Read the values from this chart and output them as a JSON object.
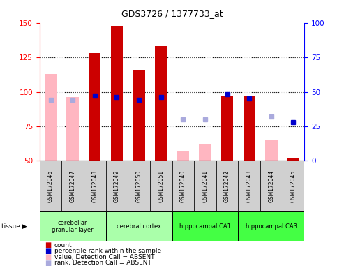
{
  "title": "GDS3726 / 1377733_at",
  "samples": [
    "GSM172046",
    "GSM172047",
    "GSM172048",
    "GSM172049",
    "GSM172050",
    "GSM172051",
    "GSM172040",
    "GSM172041",
    "GSM172042",
    "GSM172043",
    "GSM172044",
    "GSM172045"
  ],
  "group_data": [
    {
      "start": 0,
      "end": 2,
      "label": "cerebellar\ngranular layer",
      "color": "#AAFFAA"
    },
    {
      "start": 3,
      "end": 5,
      "label": "cerebral cortex",
      "color": "#AAFFAA"
    },
    {
      "start": 6,
      "end": 8,
      "label": "hippocampal CA1",
      "color": "#44FF44"
    },
    {
      "start": 9,
      "end": 11,
      "label": "hippocampal CA3",
      "color": "#44FF44"
    }
  ],
  "count_present": [
    null,
    null,
    128,
    148,
    116,
    133,
    null,
    null,
    97,
    97,
    null,
    52
  ],
  "count_absent": [
    113,
    96,
    null,
    null,
    null,
    null,
    57,
    62,
    null,
    null,
    65,
    null
  ],
  "rank_present": [
    null,
    null,
    47,
    46,
    44,
    46,
    null,
    null,
    48,
    45,
    null,
    28
  ],
  "rank_absent": [
    44,
    44,
    null,
    null,
    null,
    null,
    30,
    30,
    null,
    null,
    32,
    null
  ],
  "ylim_left": [
    50,
    150
  ],
  "ylim_right": [
    0,
    100
  ],
  "left_ticks": [
    50,
    75,
    100,
    125,
    150
  ],
  "right_ticks": [
    0,
    25,
    50,
    75,
    100
  ],
  "color_count": "#CC0000",
  "color_rank": "#0000CC",
  "color_count_absent": "#FFB6C1",
  "color_rank_absent": "#AAAADD",
  "bar_width": 0.55,
  "marker_size": 4,
  "grid_lines": [
    75,
    100,
    125
  ],
  "legend_items": [
    {
      "label": "count",
      "color": "#CC0000"
    },
    {
      "label": "percentile rank within the sample",
      "color": "#0000CC"
    },
    {
      "label": "value, Detection Call = ABSENT",
      "color": "#FFB6C1"
    },
    {
      "label": "rank, Detection Call = ABSENT",
      "color": "#AAAADD"
    }
  ],
  "cell_color": "#D0D0D0",
  "tissue_label": "tissue"
}
